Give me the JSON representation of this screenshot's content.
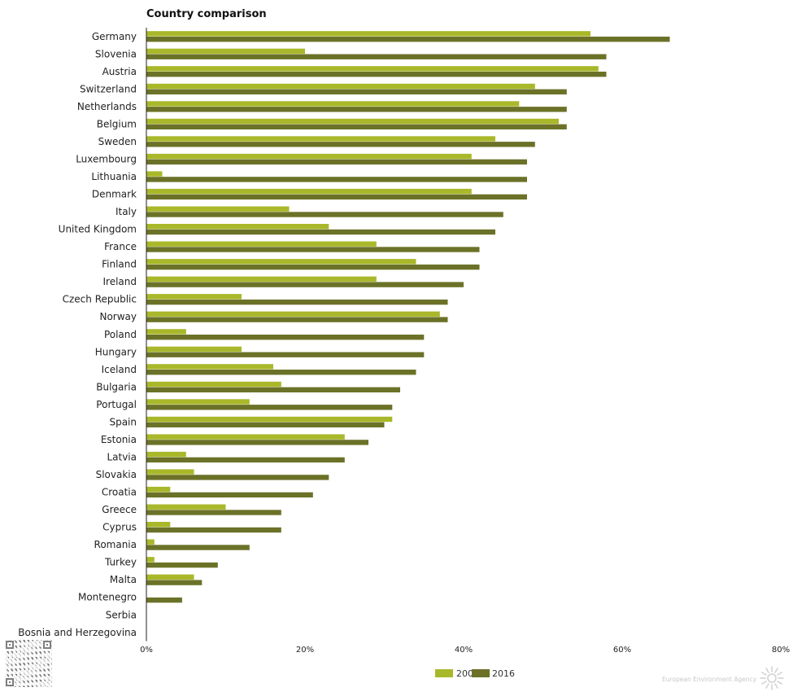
{
  "chart_data": {
    "type": "bar",
    "orientation": "horizontal",
    "title": "Country comparison",
    "categories": [
      "Germany",
      "Slovenia",
      "Austria",
      "Switzerland",
      "Netherlands",
      "Belgium",
      "Sweden",
      "Luxembourg",
      "Lithuania",
      "Denmark",
      "Italy",
      "United Kingdom",
      "France",
      "Finland",
      "Ireland",
      "Czech Republic",
      "Norway",
      "Poland",
      "Hungary",
      "Iceland",
      "Bulgaria",
      "Portugal",
      "Spain",
      "Estonia",
      "Latvia",
      "Slovakia",
      "Croatia",
      "Greece",
      "Cyprus",
      "Romania",
      "Turkey",
      "Malta",
      "Montenegro",
      "Serbia",
      "Bosnia and Herzegovina"
    ],
    "series": [
      {
        "name": "200",
        "color": "#a9b82a",
        "values": [
          56,
          20,
          57,
          49,
          47,
          52,
          44,
          41,
          2,
          41,
          18,
          23,
          29,
          34,
          29,
          12,
          37,
          5,
          12,
          16,
          17,
          13,
          31,
          25,
          5,
          6,
          3,
          10,
          3,
          1,
          1,
          6,
          null,
          null,
          null
        ]
      },
      {
        "name": "2016",
        "color": "#6b7228",
        "values": [
          66,
          58,
          58,
          53,
          53,
          53,
          49,
          48,
          48,
          48,
          45,
          44,
          42,
          42,
          40,
          38,
          38,
          35,
          35,
          34,
          32,
          31,
          30,
          28,
          25,
          23,
          21,
          17,
          17,
          13,
          9,
          7,
          4.5,
          null,
          null
        ]
      }
    ],
    "xlim": [
      0,
      80
    ],
    "xticks": [
      "0%",
      "20%",
      "40%",
      "60%",
      "80%"
    ],
    "xlabel": "",
    "ylabel": "",
    "grid": false,
    "legend_position": "bottom"
  },
  "credit": {
    "text": "European Environment Agency",
    "logo_icon": "sun-icon"
  },
  "qr": {
    "icon": "qr-code-icon"
  }
}
